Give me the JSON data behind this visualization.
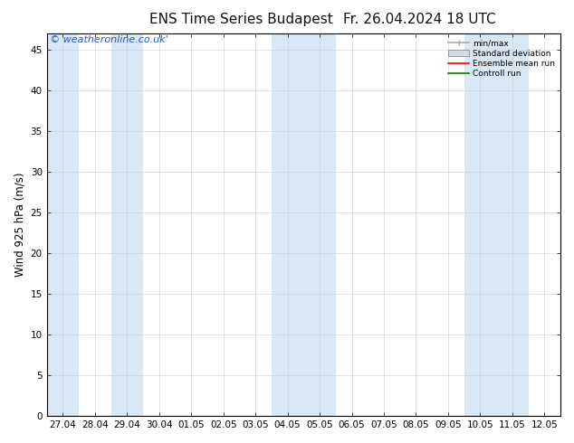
{
  "title": "ENS Time Series Budapest",
  "title2": "Fr. 26.04.2024 18 UTC",
  "ylabel": "Wind 925 hPa (m/s)",
  "watermark": "© weatheronline.co.uk'",
  "ylim": [
    0,
    47
  ],
  "yticks": [
    0,
    5,
    10,
    15,
    20,
    25,
    30,
    35,
    40,
    45
  ],
  "x_labels": [
    "27.04",
    "28.04",
    "29.04",
    "30.04",
    "01.05",
    "02.05",
    "03.05",
    "04.05",
    "05.05",
    "06.05",
    "07.05",
    "08.05",
    "09.05",
    "10.05",
    "11.05",
    "12.05"
  ],
  "shaded_x": [
    0,
    2,
    7,
    8,
    13,
    14
  ],
  "background_color": "#ffffff",
  "plot_bg_color": "#ffffff",
  "shade_color": "#d8e8f5",
  "legend_items": [
    "min/max",
    "Standard deviation",
    "Ensemble mean run",
    "Controll run"
  ],
  "legend_colors": [
    "#aaaaaa",
    "#cccccc",
    "#ff0000",
    "#008000"
  ],
  "title_fontsize": 11,
  "tick_fontsize": 7.5,
  "ylabel_fontsize": 8.5,
  "watermark_fontsize": 8
}
